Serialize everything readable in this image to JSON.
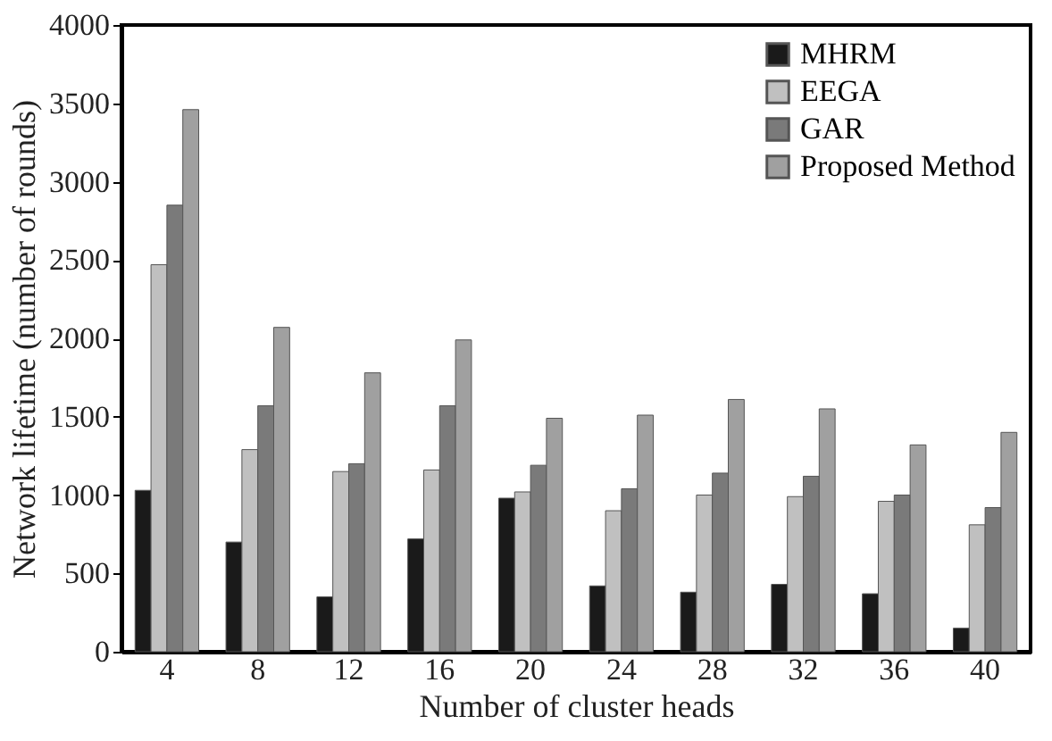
{
  "chart_data": {
    "type": "bar",
    "xlabel": "Number of cluster heads",
    "ylabel": "Network lifetime (number of rounds)",
    "categories": [
      "4",
      "8",
      "12",
      "16",
      "20",
      "24",
      "28",
      "32",
      "36",
      "40"
    ],
    "series": [
      {
        "name": "MHRM",
        "color": "#1a1a1a",
        "values": [
          1030,
          700,
          350,
          720,
          980,
          420,
          380,
          430,
          370,
          150
        ]
      },
      {
        "name": "EEGA",
        "color": "#c0c0c0",
        "values": [
          2470,
          1290,
          1150,
          1160,
          1020,
          900,
          1000,
          990,
          960,
          810
        ]
      },
      {
        "name": "GAR",
        "color": "#7a7a7a",
        "values": [
          2850,
          1570,
          1200,
          1570,
          1190,
          1040,
          1140,
          1120,
          1000,
          920
        ]
      },
      {
        "name": "Proposed Method",
        "color": "#a0a0a0",
        "values": [
          3460,
          2070,
          1780,
          1990,
          1490,
          1510,
          1610,
          1550,
          1320,
          1400
        ]
      }
    ],
    "ylim": [
      0,
      4000
    ],
    "yticks": [
      0,
      500,
      1000,
      1500,
      2000,
      2500,
      3000,
      3500,
      4000
    ],
    "grid": false,
    "legend": "top right"
  }
}
